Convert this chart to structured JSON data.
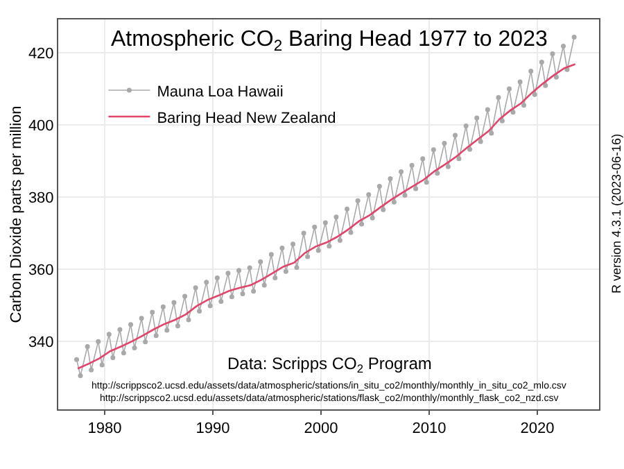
{
  "chart_data": {
    "type": "line",
    "title": "Atmospheric CO$_{2}$ Baring Head 1977 to 2023",
    "ylabel": "Carbon Dioxide parts per million",
    "y2label": "R version 4.3.1 (2023-06-16)",
    "annotations": [
      "Data: Scripps CO$_{2}$ Program",
      "http://scrippsco2.ucsd.edu/assets/data/atmospheric/stations/in_situ_co2/monthly/monthly_in_situ_co2_mlo.csv",
      "http://scrippsco2.ucsd.edu/assets/data/atmospheric/stations/flask_co2/monthly/monthly_flask_co2_nzd.csv"
    ],
    "xlim": [
      1975.7,
      2025.7
    ],
    "xticks": [
      1980,
      1990,
      2000,
      2010,
      2020
    ],
    "ylim": [
      321.2,
      429.2
    ],
    "yticks": [
      340,
      360,
      380,
      400,
      420
    ],
    "grid": true,
    "legend": "top left",
    "series": [
      {
        "name": "Mauna Loa Hawaii",
        "color": "#a9a9a9",
        "marker": "circle",
        "x": [
          1977.4,
          1977.75,
          1978.4,
          1978.75,
          1979.4,
          1979.75,
          1980.4,
          1980.75,
          1981.4,
          1981.75,
          1982.4,
          1982.75,
          1983.4,
          1983.75,
          1984.4,
          1984.75,
          1985.4,
          1985.75,
          1986.4,
          1986.75,
          1987.4,
          1987.75,
          1988.4,
          1988.75,
          1989.4,
          1989.75,
          1990.4,
          1990.75,
          1991.4,
          1991.75,
          1992.4,
          1992.75,
          1993.4,
          1993.75,
          1994.4,
          1994.75,
          1995.4,
          1995.75,
          1996.4,
          1996.75,
          1997.4,
          1997.75,
          1998.4,
          1998.75,
          1999.4,
          1999.75,
          2000.4,
          2000.75,
          2001.4,
          2001.75,
          2002.4,
          2002.75,
          2003.4,
          2003.75,
          2004.4,
          2004.75,
          2005.4,
          2005.75,
          2006.4,
          2006.75,
          2007.4,
          2007.75,
          2008.4,
          2008.75,
          2009.4,
          2009.75,
          2010.4,
          2010.75,
          2011.4,
          2011.75,
          2012.4,
          2012.75,
          2013.4,
          2013.75,
          2014.4,
          2014.75,
          2015.4,
          2015.75,
          2016.4,
          2016.75,
          2017.4,
          2017.75,
          2018.4,
          2018.75,
          2019.4,
          2019.75,
          2020.4,
          2020.75,
          2021.4,
          2021.75,
          2022.4,
          2022.75,
          2023.4
        ],
        "values": [
          335.0,
          330.5,
          338.6,
          332.1,
          340.0,
          333.5,
          342.0,
          335.5,
          343.3,
          336.8,
          344.7,
          338.2,
          346.4,
          339.9,
          348.1,
          341.6,
          349.6,
          343.1,
          350.8,
          344.3,
          352.5,
          346.0,
          354.9,
          348.4,
          356.4,
          349.9,
          357.6,
          351.1,
          358.9,
          352.4,
          359.7,
          353.2,
          360.4,
          353.9,
          362.1,
          355.6,
          364.1,
          357.6,
          365.9,
          359.4,
          367.0,
          360.5,
          370.0,
          363.5,
          371.7,
          365.2,
          372.9,
          366.4,
          374.5,
          368.0,
          376.7,
          370.2,
          379.0,
          372.5,
          380.7,
          374.2,
          383.0,
          376.5,
          385.1,
          378.6,
          387.0,
          380.5,
          388.8,
          382.3,
          390.6,
          384.1,
          393.1,
          386.6,
          394.9,
          388.4,
          397.1,
          390.6,
          399.7,
          393.2,
          401.9,
          395.4,
          404.2,
          397.7,
          407.6,
          401.1,
          410.0,
          403.5,
          411.9,
          405.4,
          414.9,
          408.4,
          417.4,
          410.9,
          419.7,
          413.2,
          421.8,
          415.3,
          424.3
        ]
      },
      {
        "name": "Baring Head New Zealand",
        "color": "#e0456a",
        "marker": "none",
        "x": [
          1977.5,
          1978.5,
          1979.5,
          1980.5,
          1981.5,
          1982.5,
          1983.5,
          1984.5,
          1985.5,
          1986.5,
          1987.5,
          1988.5,
          1989.5,
          1990.5,
          1991.5,
          1992.5,
          1993.5,
          1994.5,
          1995.5,
          1996.5,
          1997.5,
          1998.5,
          1999.5,
          2000.5,
          2001.5,
          2002.5,
          2003.5,
          2004.5,
          2005.5,
          2006.5,
          2007.5,
          2008.5,
          2009.5,
          2010.5,
          2011.5,
          2012.5,
          2013.5,
          2014.5,
          2015.5,
          2016.5,
          2017.5,
          2018.5,
          2019.5,
          2020.5,
          2021.5,
          2022.5,
          2023.5
        ],
        "values": [
          332.5,
          333.8,
          335.3,
          337.3,
          338.6,
          340.0,
          341.6,
          343.3,
          344.8,
          346.0,
          347.5,
          349.8,
          351.5,
          352.7,
          354.0,
          354.9,
          355.6,
          357.1,
          358.9,
          360.7,
          361.8,
          364.5,
          366.3,
          367.4,
          369.0,
          371.0,
          373.3,
          375.0,
          377.2,
          379.3,
          381.2,
          383.0,
          384.8,
          387.2,
          389.1,
          391.2,
          393.7,
          396.0,
          398.3,
          401.6,
          404.0,
          406.0,
          408.9,
          411.4,
          413.7,
          415.7,
          416.8
        ]
      }
    ]
  }
}
